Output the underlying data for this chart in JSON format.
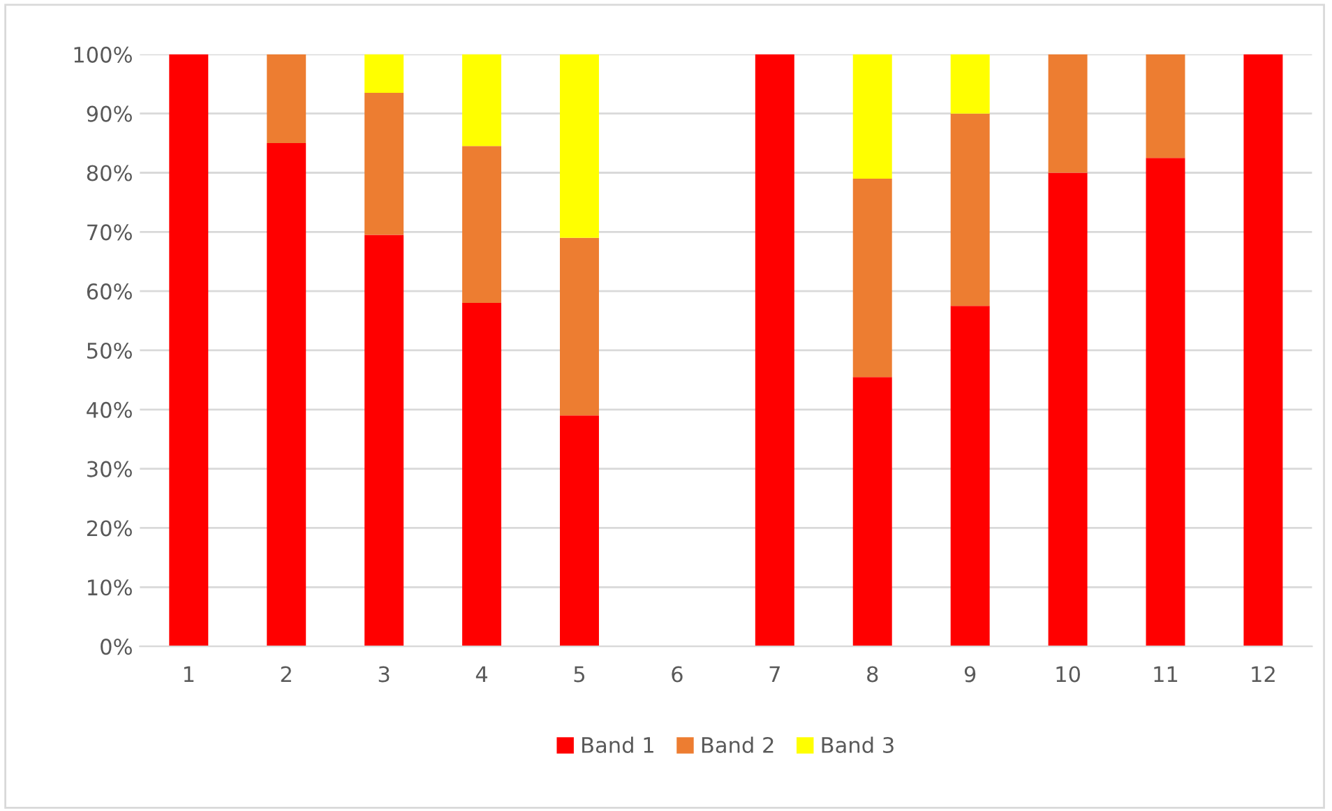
{
  "chart_data": {
    "type": "bar",
    "stacked": true,
    "categories": [
      "1",
      "2",
      "3",
      "4",
      "5",
      "6",
      "7",
      "8",
      "9",
      "10",
      "11",
      "12"
    ],
    "series": [
      {
        "name": "Band 1",
        "color": "#ff0000",
        "values": [
          100,
          85,
          69.5,
          58,
          39,
          null,
          100,
          45.5,
          57.5,
          80,
          82.5,
          100
        ]
      },
      {
        "name": "Band 2",
        "color": "#ed7d31",
        "values": [
          null,
          15,
          24,
          26.5,
          30,
          null,
          null,
          33.5,
          32.5,
          20,
          17.5,
          null
        ]
      },
      {
        "name": "Band 3",
        "color": "#ffff00",
        "values": [
          null,
          null,
          6.5,
          15.5,
          31,
          null,
          null,
          21,
          10,
          null,
          null,
          null
        ]
      }
    ],
    "ylim": [
      0,
      100
    ],
    "yticks": [
      {
        "value": 0,
        "label": "0%"
      },
      {
        "value": 10,
        "label": "10%"
      },
      {
        "value": 20,
        "label": "20%"
      },
      {
        "value": 30,
        "label": "30%"
      },
      {
        "value": 40,
        "label": "40%"
      },
      {
        "value": 50,
        "label": "50%"
      },
      {
        "value": 60,
        "label": "60%"
      },
      {
        "value": 70,
        "label": "70%"
      },
      {
        "value": 80,
        "label": "80%"
      },
      {
        "value": 90,
        "label": "90%"
      },
      {
        "value": 100,
        "label": "100%"
      }
    ],
    "grid": "y",
    "legend": "bottom"
  }
}
